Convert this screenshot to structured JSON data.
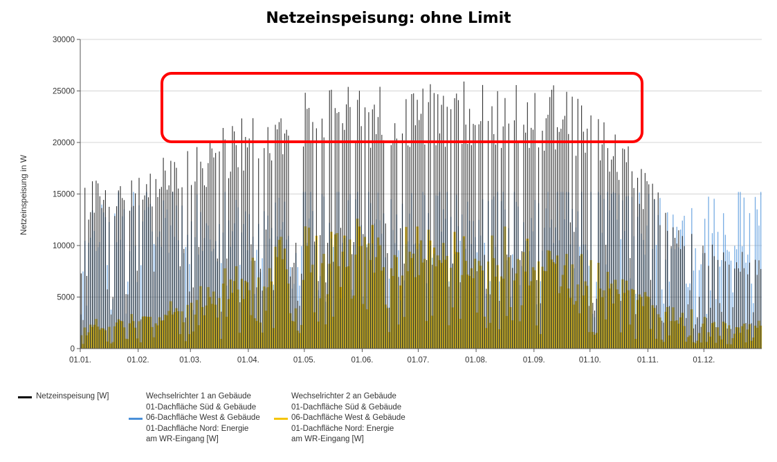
{
  "chart_data": {
    "type": "area",
    "title": "Netzeinspeisung: ohne Limit",
    "ylabel": "Netzeinspeisung  in W",
    "xlabel": "",
    "ylim": [
      0,
      30000
    ],
    "yticks": [
      "0",
      "5000",
      "10000",
      "15000",
      "20000",
      "25000",
      "30000"
    ],
    "xticks": [
      "01.01.",
      "01.02.",
      "01.03.",
      "01.04.",
      "01.05.",
      "01.06.",
      "01.07.",
      "01.08.",
      "01.09.",
      "01.10.",
      "01.11.",
      "01.12."
    ],
    "grid": "horizontal",
    "series": [
      {
        "name": "Netzeinspeisung  [W]",
        "color": "#000000",
        "monthly_peak_w": [
          16500,
          19000,
          21500,
          24500,
          25800,
          26000,
          26000,
          25800,
          25500,
          21500,
          12000,
          9500
        ]
      },
      {
        "name": "Wechselrichter 1 an Gebäude 01-Dachfläche Süd & Gebäude 06-Dachfläche West & Gebäude 01-Dachfläche Nord: Energie am WR-Eingang  [W]",
        "color": "#4a90d9",
        "monthly_peak_w": [
          15200,
          15200,
          15200,
          15200,
          15200,
          15200,
          15200,
          15200,
          15200,
          15200,
          14000,
          15000
        ]
      },
      {
        "name": "Wechselrichter 2 an Gebäude 01-Dachfläche Süd & Gebäude 06-Dachfläche West & Gebäude 01-Dachfläche Nord: Energie am WR-Eingang  [W]",
        "color": "#f5c400",
        "monthly_peak_w": [
          2500,
          4000,
          7000,
          10000,
          11500,
          11500,
          11500,
          10500,
          9000,
          7000,
          3500,
          2500
        ]
      }
    ],
    "annotation": {
      "type": "rounded-rectangle",
      "color": "#ff0000",
      "y_range_w": [
        20000,
        26500
      ],
      "x_range": [
        "15.02.",
        "15.10."
      ]
    }
  },
  "legend": {
    "item1": {
      "lines": [
        "Netzeinspeisung  [W]"
      ]
    },
    "item2": {
      "lines": [
        "Wechselrichter 1 an Gebäude",
        "01-Dachfläche Süd & Gebäude",
        "06-Dachfläche West & Gebäude",
        "01-Dachfläche Nord: Energie",
        "am WR-Eingang  [W]"
      ]
    },
    "item3": {
      "lines": [
        "Wechselrichter 2 an Gebäude",
        "01-Dachfläche Süd & Gebäude",
        "06-Dachfläche West & Gebäude",
        "01-Dachfläche Nord: Energie",
        "am WR-Eingang  [W]"
      ]
    }
  }
}
